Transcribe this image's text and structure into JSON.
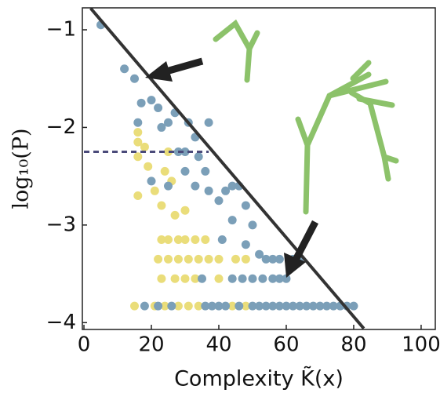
{
  "chart_data": {
    "type": "scatter",
    "x_label": "Complexity K̃(x)",
    "y_label": "log₁₀(P)",
    "xlim": [
      -0.47,
      104.2
    ],
    "ylim": [
      -4.07,
      -0.775
    ],
    "xticks": [
      0,
      20,
      40,
      60,
      80,
      100
    ],
    "yticks": [
      {
        "value": -1,
        "label": "−1"
      },
      {
        "value": -2,
        "label": "−2"
      },
      {
        "value": -3,
        "label": "−3"
      },
      {
        "value": -4,
        "label": "−4"
      }
    ],
    "series": [
      {
        "color": "#eadd7a",
        "x": [
          16,
          16,
          16,
          18,
          19,
          16,
          21,
          24,
          25,
          26,
          23,
          27,
          30,
          23,
          25,
          28,
          30,
          33,
          36,
          22,
          25,
          28,
          31,
          34,
          37,
          40,
          45,
          48,
          23,
          27,
          30,
          33,
          40,
          15,
          21,
          24,
          28,
          31,
          34,
          44,
          48
        ],
        "y": [
          -2.05,
          -2.15,
          -2.3,
          -2.2,
          -2.4,
          -2.7,
          -2.65,
          -2.45,
          -2.25,
          -2.55,
          -2.8,
          -2.9,
          -2.85,
          -3.15,
          -3.15,
          -3.15,
          -3.15,
          -3.15,
          -3.15,
          -3.35,
          -3.35,
          -3.35,
          -3.35,
          -3.35,
          -3.35,
          -3.35,
          -3.35,
          -3.35,
          -3.55,
          -3.55,
          -3.55,
          -3.55,
          -3.55,
          -3.83,
          -3.83,
          -3.83,
          -3.83,
          -3.83,
          -3.83,
          -3.83,
          -3.83
        ]
      },
      {
        "color": "#7b9fb8",
        "x": [
          5,
          12,
          15,
          17,
          20,
          16,
          22,
          25,
          27,
          23,
          31,
          37,
          28,
          30,
          33,
          34,
          36,
          30,
          20,
          25,
          33,
          37,
          42,
          44,
          46,
          48,
          40,
          44,
          50,
          41,
          48,
          52,
          54,
          56,
          58,
          62,
          64,
          35,
          44,
          47,
          50,
          53,
          56,
          58,
          60,
          18,
          22,
          26,
          36,
          38,
          40,
          42,
          46,
          50,
          52,
          54,
          56,
          58,
          60,
          62,
          64,
          66,
          68,
          70,
          72,
          74,
          76,
          78,
          80
        ],
        "y": [
          -0.95,
          -1.4,
          -1.5,
          -1.75,
          -1.72,
          -1.95,
          -1.8,
          -1.95,
          -1.85,
          -2.0,
          -1.95,
          -1.95,
          -2.25,
          -2.25,
          -2.1,
          -2.3,
          -2.45,
          -2.45,
          -2.55,
          -2.6,
          -2.6,
          -2.65,
          -2.65,
          -2.6,
          -2.6,
          -2.8,
          -2.75,
          -2.95,
          -3.0,
          -3.15,
          -3.2,
          -3.3,
          -3.35,
          -3.35,
          -3.35,
          -3.35,
          -3.35,
          -3.55,
          -3.55,
          -3.55,
          -3.55,
          -3.55,
          -3.55,
          -3.55,
          -3.55,
          -3.83,
          -3.83,
          -3.83,
          -3.83,
          -3.83,
          -3.83,
          -3.83,
          -3.83,
          -3.83,
          -3.83,
          -3.83,
          -3.83,
          -3.83,
          -3.83,
          -3.83,
          -3.83,
          -3.83,
          -3.83,
          -3.83,
          -3.83,
          -3.83,
          -3.83,
          -3.83,
          -3.83
        ]
      }
    ],
    "fit_line": {
      "x": [
        2,
        83
      ],
      "y": [
        -0.78,
        -4.06
      ],
      "color": "#333333"
    },
    "reference_line": {
      "x": [
        0,
        37
      ],
      "y": [
        -2.25,
        -2.25
      ],
      "color": "#4a4a7a",
      "dashed": true
    }
  }
}
